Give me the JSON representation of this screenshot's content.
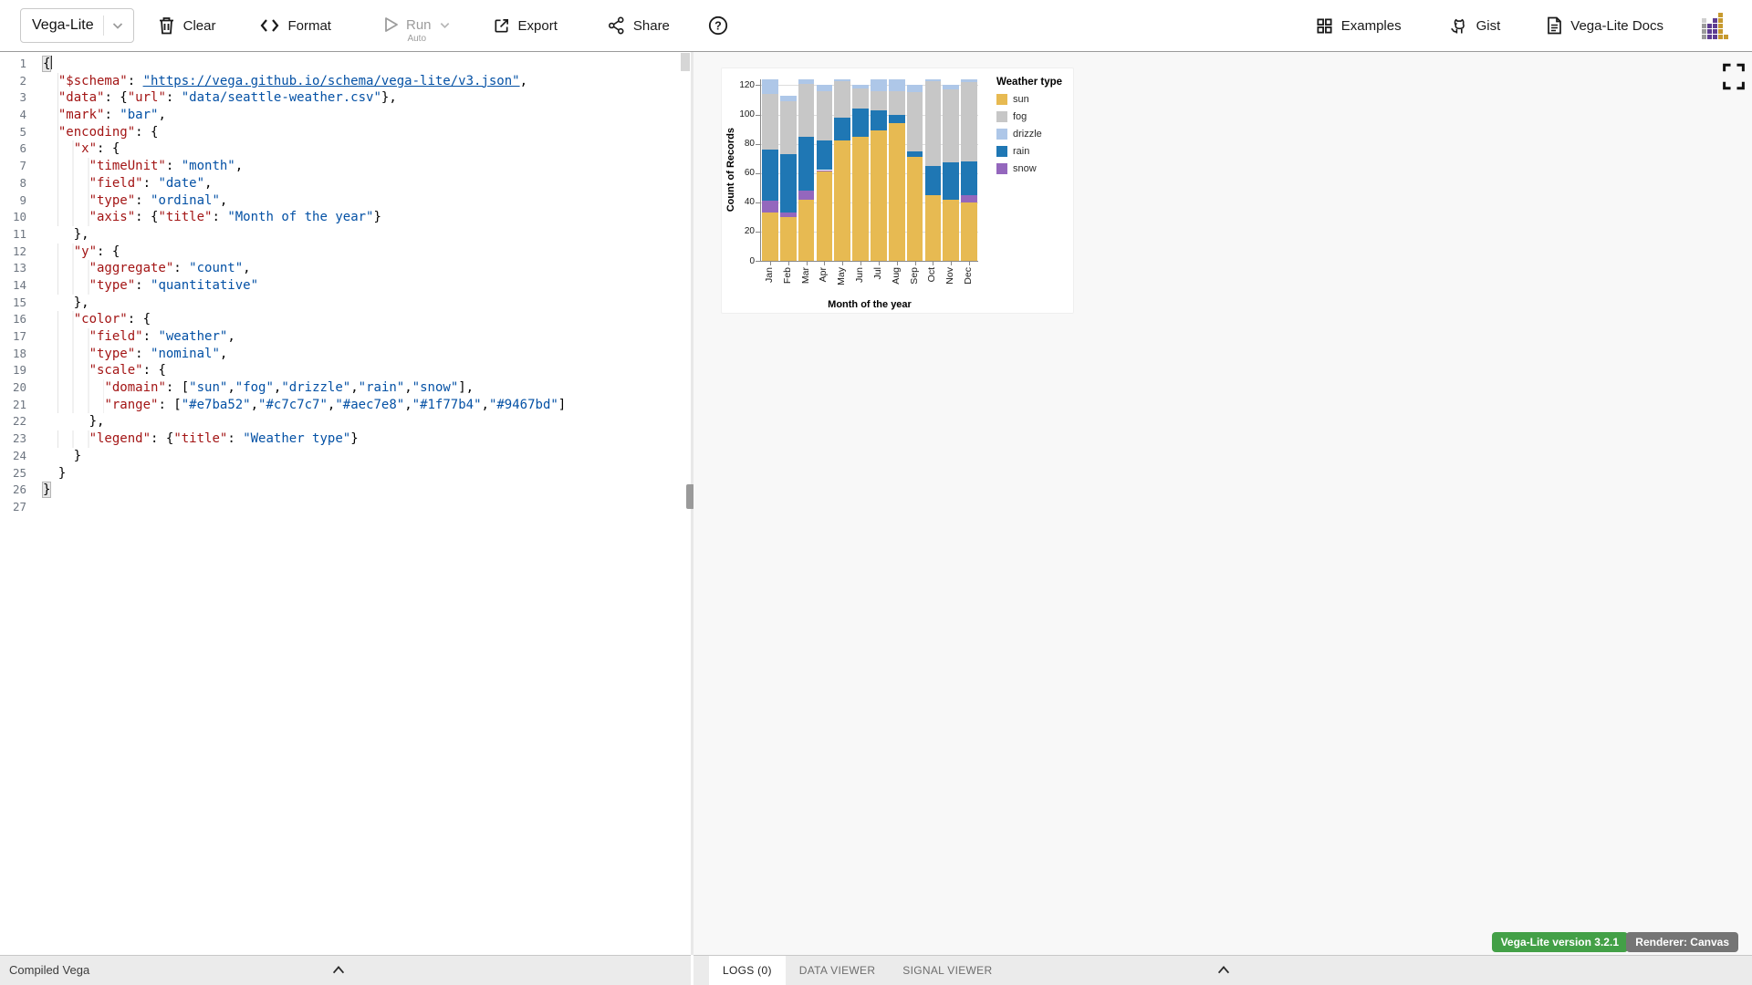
{
  "toolbar": {
    "mode_label": "Vega-Lite",
    "clear_label": "Clear",
    "format_label": "Format",
    "run_label": "Run",
    "run_sub_label": "Auto",
    "export_label": "Export",
    "share_label": "Share",
    "examples_label": "Examples",
    "gist_label": "Gist",
    "docs_label": "Vega-Lite Docs",
    "icons": [
      "chevron-down-icon",
      "trash-icon",
      "code-icon",
      "play-icon",
      "export-icon",
      "share-icon",
      "help-icon",
      "grid-icon",
      "github-icon",
      "document-icon",
      "idl-logo"
    ]
  },
  "editor": {
    "lines": [
      [
        [
          "b",
          "{"
        ],
        [
          "cur",
          ""
        ]
      ],
      [
        [
          "p",
          "  "
        ],
        [
          "k",
          "\"$schema\""
        ],
        [
          "p",
          ": "
        ],
        [
          "l",
          "\"https://vega.github.io/schema/vega-lite/v3.json\""
        ],
        [
          "p",
          ","
        ]
      ],
      [
        [
          "p",
          "  "
        ],
        [
          "k",
          "\"data\""
        ],
        [
          "p",
          ": {"
        ],
        [
          "k",
          "\"url\""
        ],
        [
          "p",
          ": "
        ],
        [
          "v",
          "\"data/seattle-weather.csv\""
        ],
        [
          "p",
          "},"
        ]
      ],
      [
        [
          "p",
          "  "
        ],
        [
          "k",
          "\"mark\""
        ],
        [
          "p",
          ": "
        ],
        [
          "v",
          "\"bar\""
        ],
        [
          "p",
          ","
        ]
      ],
      [
        [
          "p",
          "  "
        ],
        [
          "k",
          "\"encoding\""
        ],
        [
          "p",
          ": {"
        ]
      ],
      [
        [
          "p",
          "    "
        ],
        [
          "k",
          "\"x\""
        ],
        [
          "p",
          ": {"
        ]
      ],
      [
        [
          "p",
          "      "
        ],
        [
          "k",
          "\"timeUnit\""
        ],
        [
          "p",
          ": "
        ],
        [
          "v",
          "\"month\""
        ],
        [
          "p",
          ","
        ]
      ],
      [
        [
          "p",
          "      "
        ],
        [
          "k",
          "\"field\""
        ],
        [
          "p",
          ": "
        ],
        [
          "v",
          "\"date\""
        ],
        [
          "p",
          ","
        ]
      ],
      [
        [
          "p",
          "      "
        ],
        [
          "k",
          "\"type\""
        ],
        [
          "p",
          ": "
        ],
        [
          "v",
          "\"ordinal\""
        ],
        [
          "p",
          ","
        ]
      ],
      [
        [
          "p",
          "      "
        ],
        [
          "k",
          "\"axis\""
        ],
        [
          "p",
          ": {"
        ],
        [
          "k",
          "\"title\""
        ],
        [
          "p",
          ": "
        ],
        [
          "v",
          "\"Month of the year\""
        ],
        [
          "p",
          "}"
        ]
      ],
      [
        [
          "p",
          "    },"
        ]
      ],
      [
        [
          "p",
          "    "
        ],
        [
          "k",
          "\"y\""
        ],
        [
          "p",
          ": {"
        ]
      ],
      [
        [
          "p",
          "      "
        ],
        [
          "k",
          "\"aggregate\""
        ],
        [
          "p",
          ": "
        ],
        [
          "v",
          "\"count\""
        ],
        [
          "p",
          ","
        ]
      ],
      [
        [
          "p",
          "      "
        ],
        [
          "k",
          "\"type\""
        ],
        [
          "p",
          ": "
        ],
        [
          "v",
          "\"quantitative\""
        ]
      ],
      [
        [
          "p",
          "    },"
        ]
      ],
      [
        [
          "p",
          "    "
        ],
        [
          "k",
          "\"color\""
        ],
        [
          "p",
          ": {"
        ]
      ],
      [
        [
          "p",
          "      "
        ],
        [
          "k",
          "\"field\""
        ],
        [
          "p",
          ": "
        ],
        [
          "v",
          "\"weather\""
        ],
        [
          "p",
          ","
        ]
      ],
      [
        [
          "p",
          "      "
        ],
        [
          "k",
          "\"type\""
        ],
        [
          "p",
          ": "
        ],
        [
          "v",
          "\"nominal\""
        ],
        [
          "p",
          ","
        ]
      ],
      [
        [
          "p",
          "      "
        ],
        [
          "k",
          "\"scale\""
        ],
        [
          "p",
          ": {"
        ]
      ],
      [
        [
          "p",
          "        "
        ],
        [
          "k",
          "\"domain\""
        ],
        [
          "p",
          ": ["
        ],
        [
          "v",
          "\"sun\""
        ],
        [
          "p",
          ","
        ],
        [
          "v",
          "\"fog\""
        ],
        [
          "p",
          ","
        ],
        [
          "v",
          "\"drizzle\""
        ],
        [
          "p",
          ","
        ],
        [
          "v",
          "\"rain\""
        ],
        [
          "p",
          ","
        ],
        [
          "v",
          "\"snow\""
        ],
        [
          "p",
          "],"
        ]
      ],
      [
        [
          "p",
          "        "
        ],
        [
          "k",
          "\"range\""
        ],
        [
          "p",
          ": ["
        ],
        [
          "v",
          "\"#e7ba52\""
        ],
        [
          "p",
          ","
        ],
        [
          "v",
          "\"#c7c7c7\""
        ],
        [
          "p",
          ","
        ],
        [
          "v",
          "\"#aec7e8\""
        ],
        [
          "p",
          ","
        ],
        [
          "v",
          "\"#1f77b4\""
        ],
        [
          "p",
          ","
        ],
        [
          "v",
          "\"#9467bd\""
        ],
        [
          "p",
          "]"
        ]
      ],
      [
        [
          "p",
          "      },"
        ]
      ],
      [
        [
          "p",
          "      "
        ],
        [
          "k",
          "\"legend\""
        ],
        [
          "p",
          ": {"
        ],
        [
          "k",
          "\"title\""
        ],
        [
          "p",
          ": "
        ],
        [
          "v",
          "\"Weather type\""
        ],
        [
          "p",
          "}"
        ]
      ],
      [
        [
          "p",
          "    }"
        ]
      ],
      [
        [
          "p",
          "  }"
        ]
      ],
      [
        [
          "b",
          "}"
        ]
      ],
      []
    ]
  },
  "chart_data": {
    "type": "bar",
    "stacked": true,
    "categories": [
      "Jan",
      "Feb",
      "Mar",
      "Apr",
      "May",
      "Jun",
      "Jul",
      "Aug",
      "Sep",
      "Oct",
      "Nov",
      "Dec"
    ],
    "series": [
      {
        "name": "sun",
        "color": "#e7ba52",
        "values": [
          33,
          30,
          42,
          61,
          82,
          85,
          89,
          94,
          71,
          45,
          42,
          40
        ]
      },
      {
        "name": "snow",
        "color": "#9467bd",
        "values": [
          8,
          3,
          6,
          1,
          0,
          0,
          0,
          0,
          0,
          0,
          0,
          5
        ]
      },
      {
        "name": "rain",
        "color": "#1f77b4",
        "values": [
          35,
          40,
          37,
          20,
          16,
          19,
          14,
          6,
          4,
          20,
          25,
          23
        ]
      },
      {
        "name": "fog",
        "color": "#c7c7c7",
        "values": [
          38,
          36,
          36,
          34,
          25,
          14,
          13,
          16,
          40,
          58,
          50,
          54
        ]
      },
      {
        "name": "drizzle",
        "color": "#aec7e8",
        "values": [
          10,
          4,
          3,
          4,
          1,
          2,
          8,
          8,
          5,
          1,
          3,
          2
        ]
      }
    ],
    "stack_order_bottom_to_top": [
      "sun",
      "snow",
      "rain",
      "fog",
      "drizzle"
    ],
    "xlabel": "Month of the year",
    "ylabel": "Count of Records",
    "yticks": [
      0,
      20,
      40,
      60,
      80,
      100,
      120
    ],
    "ylim": [
      0,
      124
    ],
    "grid": true,
    "legend": {
      "title": "Weather type",
      "position": "right",
      "entries": [
        {
          "label": "sun",
          "color": "#e7ba52"
        },
        {
          "label": "fog",
          "color": "#c7c7c7"
        },
        {
          "label": "drizzle",
          "color": "#aec7e8"
        },
        {
          "label": "rain",
          "color": "#1f77b4"
        },
        {
          "label": "snow",
          "color": "#9467bd"
        }
      ]
    }
  },
  "status_left": {
    "label": "Compiled Vega"
  },
  "bottom_tabs": [
    {
      "label": "LOGS (0)",
      "active": true
    },
    {
      "label": "DATA VIEWER",
      "active": false
    },
    {
      "label": "SIGNAL VIEWER",
      "active": false
    }
  ],
  "badges": {
    "version_label": "Vega-Lite version 3.2.1",
    "version_color": "#43a047",
    "renderer_label": "Renderer: Canvas",
    "renderer_color": "#757575"
  }
}
